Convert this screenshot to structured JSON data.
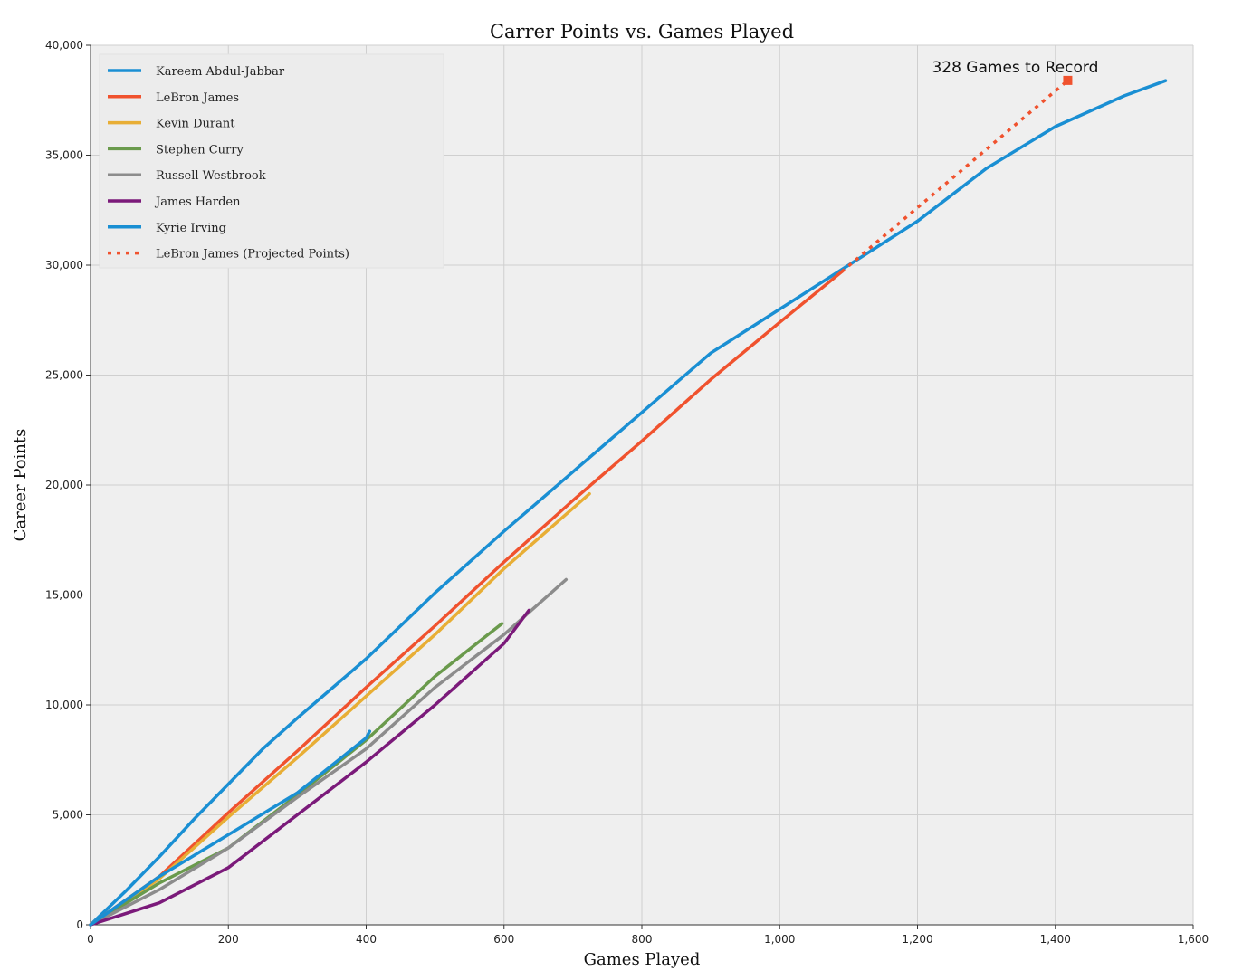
{
  "chart_data": {
    "type": "line",
    "title": "Carrer Points vs. Games Played",
    "xlabel": "Games Played",
    "ylabel": "Career Points",
    "xlim": [
      0,
      1600
    ],
    "ylim": [
      0,
      40000
    ],
    "x_ticks": [
      0,
      200,
      400,
      600,
      800,
      1000,
      1200,
      1400,
      1600
    ],
    "x_tick_labels": [
      "0",
      "200",
      "400",
      "600",
      "800",
      "1,000",
      "1,200",
      "1,400",
      "1,600"
    ],
    "y_ticks": [
      0,
      5000,
      10000,
      15000,
      20000,
      25000,
      30000,
      35000,
      40000
    ],
    "y_tick_labels": [
      "0",
      "5,000",
      "10,000",
      "15,000",
      "20,000",
      "25,000",
      "30,000",
      "35,000",
      "40,000"
    ],
    "grid": true,
    "plot_background": "#efefef",
    "legend_position": "top-left",
    "series": [
      {
        "name": "Kareem Abdul-Jabbar",
        "color": "#1a8fd3",
        "style": "solid",
        "points": [
          [
            0,
            0
          ],
          [
            50,
            1500
          ],
          [
            100,
            3100
          ],
          [
            150,
            4800
          ],
          [
            200,
            6400
          ],
          [
            250,
            8000
          ],
          [
            300,
            9400
          ],
          [
            400,
            12100
          ],
          [
            500,
            15100
          ],
          [
            600,
            17900
          ],
          [
            700,
            20600
          ],
          [
            800,
            23300
          ],
          [
            900,
            26000
          ],
          [
            1000,
            28000
          ],
          [
            1100,
            30000
          ],
          [
            1200,
            32000
          ],
          [
            1300,
            34400
          ],
          [
            1400,
            36300
          ],
          [
            1500,
            37700
          ],
          [
            1560,
            38387
          ]
        ]
      },
      {
        "name": "LeBron James",
        "color": "#f0522e",
        "style": "solid",
        "points": [
          [
            0,
            0
          ],
          [
            100,
            2200
          ],
          [
            200,
            5100
          ],
          [
            300,
            7900
          ],
          [
            400,
            10800
          ],
          [
            500,
            13600
          ],
          [
            600,
            16500
          ],
          [
            700,
            19300
          ],
          [
            800,
            22000
          ],
          [
            900,
            24800
          ],
          [
            1000,
            27400
          ],
          [
            1090,
            29700
          ]
        ]
      },
      {
        "name": "Kevin Durant",
        "color": "#e8ae35",
        "style": "solid",
        "points": [
          [
            0,
            0
          ],
          [
            100,
            2100
          ],
          [
            200,
            4900
          ],
          [
            300,
            7600
          ],
          [
            400,
            10400
          ],
          [
            500,
            13200
          ],
          [
            600,
            16200
          ],
          [
            724,
            19600
          ]
        ]
      },
      {
        "name": "Stephen Curry",
        "color": "#6a9a4c",
        "style": "solid",
        "points": [
          [
            0,
            0
          ],
          [
            100,
            1900
          ],
          [
            200,
            3500
          ],
          [
            300,
            5900
          ],
          [
            400,
            8400
          ],
          [
            500,
            11300
          ],
          [
            597,
            13700
          ]
        ]
      },
      {
        "name": "Russell Westbrook",
        "color": "#8c8c8c",
        "style": "solid",
        "points": [
          [
            0,
            0
          ],
          [
            100,
            1600
          ],
          [
            200,
            3500
          ],
          [
            300,
            5800
          ],
          [
            400,
            8000
          ],
          [
            500,
            10800
          ],
          [
            600,
            13200
          ],
          [
            690,
            15700
          ]
        ]
      },
      {
        "name": "James Harden",
        "color": "#7b1a7a",
        "style": "solid",
        "points": [
          [
            0,
            0
          ],
          [
            100,
            1000
          ],
          [
            200,
            2600
          ],
          [
            300,
            5000
          ],
          [
            400,
            7400
          ],
          [
            500,
            10000
          ],
          [
            600,
            12800
          ],
          [
            636,
            14300
          ]
        ]
      },
      {
        "name": "Kyrie Irving",
        "color": "#1a8fd3",
        "style": "solid",
        "points": [
          [
            0,
            0
          ],
          [
            100,
            2200
          ],
          [
            200,
            4100
          ],
          [
            300,
            6000
          ],
          [
            400,
            8500
          ],
          [
            405,
            8800
          ]
        ]
      },
      {
        "name": "LeBron James (Projected Points)",
        "color": "#f0522e",
        "style": "dotted",
        "points": [
          [
            1090,
            29700
          ],
          [
            1418,
            38400
          ]
        ]
      }
    ],
    "annotations": [
      {
        "text": "328 Games to Record",
        "x": 1418,
        "y": 38400,
        "color": "#f0522e",
        "marker": "square"
      }
    ]
  }
}
